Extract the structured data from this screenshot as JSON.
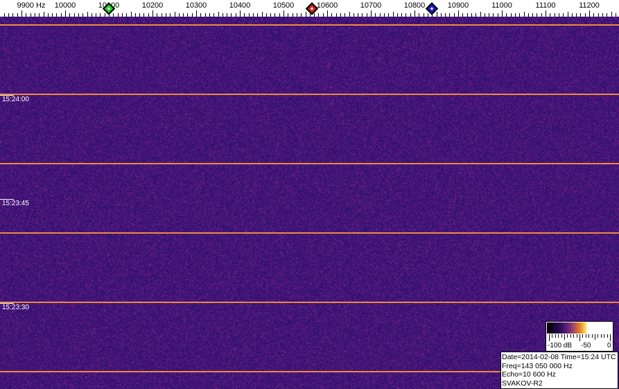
{
  "axis": {
    "labels": [
      "9900 Hz",
      "10000",
      "10100",
      "10200",
      "10300",
      "10400",
      "10500",
      "10600",
      "10700",
      "10800",
      "10900",
      "11000",
      "11100",
      "11200"
    ],
    "frequencies_hz": [
      9900,
      10000,
      10100,
      10200,
      10300,
      10400,
      10500,
      10600,
      10700,
      10800,
      10900,
      11000,
      11100,
      11200
    ]
  },
  "markers": [
    {
      "name": "green",
      "freq_hz": 10100,
      "color": "#22cc22"
    },
    {
      "name": "red",
      "freq_hz": 10565,
      "color": "#cc2222"
    },
    {
      "name": "blue",
      "freq_hz": 10840,
      "color": "#1a1acc"
    }
  ],
  "time_labels": [
    "15:24:00",
    "15:23:45",
    "15:23:30"
  ],
  "legend": {
    "min_label": "-100 dB",
    "mid_label": "-50",
    "max_label": "0"
  },
  "info": {
    "line1": "Date=2014-02-08 Time=15:24 UTC",
    "line2": "Freq=143 050 000 Hz",
    "line3": "Echo=10 600 Hz",
    "line4": "SVAKOV-R2"
  },
  "colors": {
    "background_noise": "#3a1a7a",
    "minute_line": "#f08a3c"
  }
}
